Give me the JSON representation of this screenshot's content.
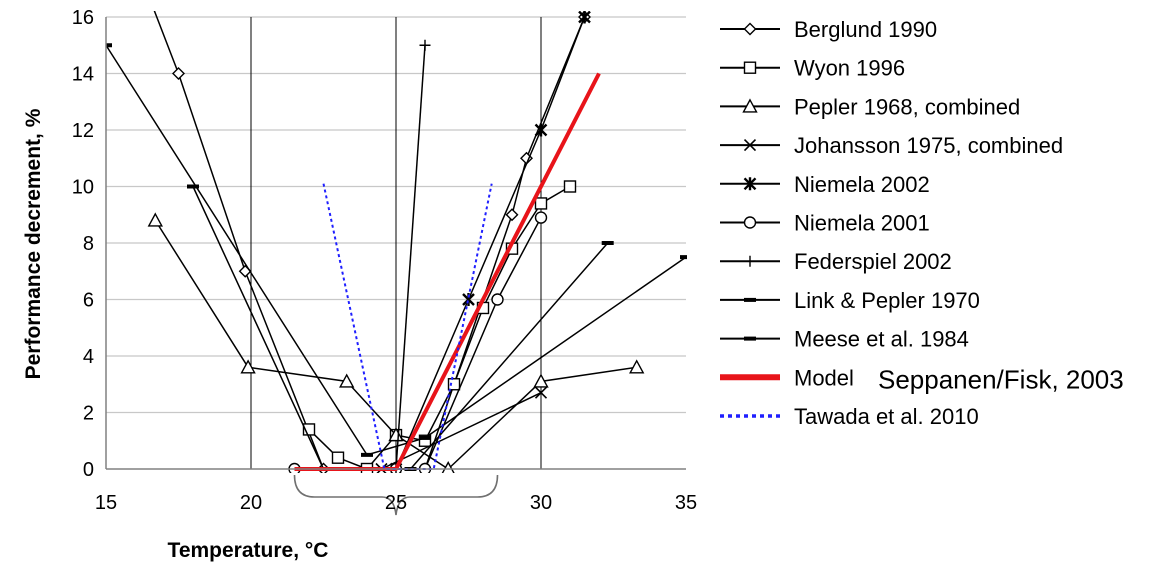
{
  "chart_data": {
    "type": "line",
    "title": "",
    "xlabel": "Temperature, °C",
    "ylabel": "Performance decrement, %",
    "xlim": [
      15,
      35
    ],
    "ylim": [
      0,
      16
    ],
    "xticks": [
      "15",
      "20",
      "25",
      "30",
      "35"
    ],
    "yticks": [
      "0",
      "2",
      "4",
      "6",
      "8",
      "10",
      "12",
      "14",
      "16"
    ],
    "grid": "vertical gridlines at x=20, 25, 30",
    "legend_position": "right",
    "series": [
      {
        "name": "Berglund 1990",
        "marker": "diamond",
        "x": [
          16,
          17.5,
          19.8,
          22.5,
          26,
          29,
          29.5,
          31.5
        ],
        "y": [
          18,
          14,
          7,
          0,
          0,
          9,
          11,
          16
        ]
      },
      {
        "name": "Wyon 1996",
        "marker": "square",
        "x": [
          22,
          23,
          24,
          25,
          26,
          27,
          28,
          29,
          30,
          31
        ],
        "y": [
          1.4,
          0.4,
          0,
          1.2,
          1,
          3,
          5.7,
          7.8,
          9.4,
          10
        ]
      },
      {
        "name": "Pepler 1968, combined",
        "marker": "triangle",
        "x": [
          16.7,
          19.9,
          23.3,
          25,
          26.8,
          30,
          33.3
        ],
        "y": [
          8.8,
          3.6,
          3.1,
          1.2,
          0,
          3.1,
          3.6
        ]
      },
      {
        "name": "Johansson 1975, combined",
        "marker": "x",
        "x": [
          24.5,
          30
        ],
        "y": [
          0,
          2.7
        ]
      },
      {
        "name": "Niemela 2002",
        "marker": "star",
        "x": [
          25,
          27.5,
          30,
          31.5
        ],
        "y": [
          0,
          6,
          12,
          16
        ]
      },
      {
        "name": "Niemela 2001",
        "marker": "circle",
        "x": [
          21.5,
          25,
          26,
          28.5,
          30
        ],
        "y": [
          0,
          0,
          0,
          6,
          8.9
        ]
      },
      {
        "name": "Federspiel 2002",
        "marker": "plus",
        "x": [
          25,
          26
        ],
        "y": [
          0,
          15
        ]
      },
      {
        "name": "Link & Pepler 1970",
        "marker": "dash",
        "x": [
          18,
          22.5,
          25.5,
          32.3
        ],
        "y": [
          10,
          0,
          0,
          8
        ]
      },
      {
        "name": "Meese et al. 1984",
        "marker": "dash",
        "x": [
          15,
          24,
          26,
          35
        ],
        "y": [
          15,
          0.5,
          1.1,
          7.5
        ]
      },
      {
        "name": "Model",
        "name_extra": "Seppanen/Fisk, 2003",
        "marker": "none",
        "color": "#e8141a",
        "x": [
          21.5,
          25,
          32
        ],
        "y": [
          0,
          0,
          14
        ]
      },
      {
        "name": "Tawada et al. 2010",
        "marker": "none",
        "style": "dotted",
        "color": "#1f1fff",
        "x": [
          22.5,
          24.6,
          26.3,
          28.3
        ],
        "y": [
          10.1,
          0,
          0,
          10.1
        ]
      }
    ],
    "annotation": "brace under x-axis spanning 21.5 to 28.5 °C"
  }
}
